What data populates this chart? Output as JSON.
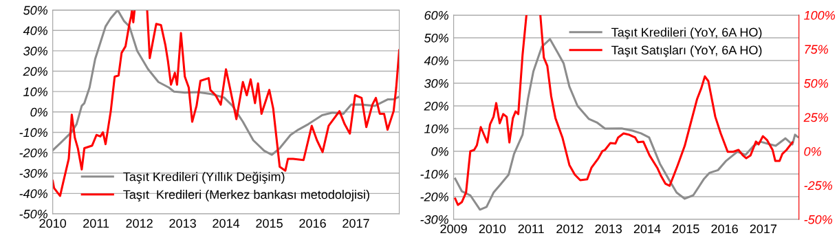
{
  "chart_data": [
    {
      "type": "line",
      "xlim": [
        2010,
        2018
      ],
      "xticks": [
        2010,
        2011,
        2012,
        2013,
        2014,
        2015,
        2016,
        2017
      ],
      "ylim": [
        -50,
        50
      ],
      "yticks": [
        {
          "value": -50,
          "label": "-50%"
        },
        {
          "value": -40,
          "label": "-40%"
        },
        {
          "value": -30,
          "label": "-30%"
        },
        {
          "value": -20,
          "label": "-20%"
        },
        {
          "value": -10,
          "label": "-10%"
        },
        {
          "value": 0,
          "label": "0%"
        },
        {
          "value": 10,
          "label": "10%"
        },
        {
          "value": 20,
          "label": "20%"
        },
        {
          "value": 30,
          "label": "30%"
        },
        {
          "value": 40,
          "label": "40%"
        },
        {
          "value": 50,
          "label": "50%"
        }
      ],
      "grid": "y",
      "legend": "bottom",
      "marker": "none",
      "line_style": "solid",
      "series": [
        {
          "name": "Taşıt Kredileri (Yıllık Değişim)",
          "color": "#8c8c8c",
          "x": [
            2010.0,
            2010.18,
            2010.43,
            2010.55,
            2010.67,
            2010.73,
            2010.85,
            2010.98,
            2011.1,
            2011.22,
            2011.34,
            2011.5,
            2011.65,
            2011.77,
            2011.95,
            2012.2,
            2012.44,
            2012.68,
            2012.8,
            2013.05,
            2013.35,
            2013.66,
            2013.96,
            2014.15,
            2014.39,
            2014.63,
            2014.88,
            2015.06,
            2015.24,
            2015.49,
            2015.67,
            2015.9,
            2016.22,
            2016.46,
            2016.71,
            2016.89,
            2017.13,
            2017.44,
            2017.74,
            2017.87,
            2018.0
          ],
          "values": [
            -18.8,
            -15.2,
            -10,
            -6,
            3,
            4.3,
            12,
            26,
            34,
            42,
            46,
            50,
            44.5,
            42,
            30,
            21,
            14.7,
            12,
            10,
            9.5,
            9.7,
            8.8,
            7,
            3,
            -4.8,
            -13.9,
            -19,
            -21,
            -17.8,
            -11.3,
            -8.7,
            -6,
            -1.6,
            -0.3,
            -0.9,
            3.6,
            3.6,
            3,
            6.2,
            6.2,
            7.5
          ]
        },
        {
          "name": "Taşıt  Kredileri (Merkez bankası metodolojisi)",
          "color": "#ff0000",
          "x": [
            2010.0,
            2010.03,
            2010.17,
            2010.24,
            2010.37,
            2010.44,
            2010.51,
            2010.58,
            2010.67,
            2010.73,
            2010.91,
            2011.01,
            2011.1,
            2011.16,
            2011.22,
            2011.34,
            2011.43,
            2011.52,
            2011.59,
            2011.68,
            2011.77,
            2011.81,
            2011.83,
            2011.86,
            2011.89,
            2012.0,
            2012.18,
            2012.24,
            2012.32,
            2012.39,
            2012.5,
            2012.6,
            2012.66,
            2012.73,
            2012.82,
            2012.87,
            2012.96,
            2013.05,
            2013.14,
            2013.22,
            2013.32,
            2013.41,
            2013.6,
            2013.64,
            2013.76,
            2013.88,
            2014.0,
            2014.09,
            2014.24,
            2014.39,
            2014.48,
            2014.57,
            2014.67,
            2014.74,
            2014.82,
            2015.0,
            2015.09,
            2015.24,
            2015.37,
            2015.43,
            2015.55,
            2015.79,
            2015.98,
            2016.1,
            2016.23,
            2016.37,
            2016.62,
            2016.74,
            2016.86,
            2016.98,
            2017.13,
            2017.24,
            2017.38,
            2017.46,
            2017.55,
            2017.65,
            2017.73,
            2017.87,
            2017.93,
            2018.0
          ],
          "values": [
            -33.8,
            -37.3,
            -41.2,
            -34.7,
            -23,
            -1.3,
            -12.6,
            -17.8,
            -28.2,
            -17.8,
            -16.5,
            -11.3,
            -12,
            -10,
            -15.8,
            0.4,
            17.3,
            17.9,
            29,
            32.2,
            43.2,
            47,
            50,
            44,
            50,
            null,
            50,
            26.4,
            35.5,
            43.2,
            42.6,
            32.9,
            25,
            13.4,
            19.2,
            13.4,
            38.7,
            17.3,
            12,
            -4.8,
            3,
            15.3,
            16.6,
            10.8,
            8.2,
            3.6,
            20.9,
            12,
            -3.5,
            14.7,
            8.2,
            16,
            4.3,
            14,
            -0.9,
            10.8,
            1.7,
            -26.9,
            -28.8,
            -23,
            -23,
            -23.6,
            -6.8,
            -13.9,
            -19.7,
            -6.8,
            0.4,
            -6,
            -10.6,
            8.2,
            6.9,
            -7.4,
            3.6,
            6.9,
            -0.9,
            -0.9,
            -8.7,
            0.4,
            12,
            30.3
          ]
        }
      ]
    },
    {
      "type": "line",
      "xlim": [
        2009,
        2017.92
      ],
      "xticks": [
        2009,
        2010,
        2011,
        2012,
        2013,
        2014,
        2015,
        2016,
        2017
      ],
      "ylim": [
        -30,
        60
      ],
      "yticks": [
        {
          "value": -30,
          "label": "-30%"
        },
        {
          "value": -20,
          "label": "-20%"
        },
        {
          "value": -10,
          "label": "-10%"
        },
        {
          "value": 0,
          "label": "0%"
        },
        {
          "value": 10,
          "label": "10%"
        },
        {
          "value": 20,
          "label": "20%"
        },
        {
          "value": 30,
          "label": "30%"
        },
        {
          "value": 40,
          "label": "40%"
        },
        {
          "value": 50,
          "label": "50%"
        },
        {
          "value": 60,
          "label": "60%"
        }
      ],
      "y2lim": [
        -50,
        100
      ],
      "y2ticks": [
        {
          "value": -50,
          "label": "-50%"
        },
        {
          "value": -25,
          "label": "-25%"
        },
        {
          "value": 0,
          "label": "0%"
        },
        {
          "value": 25,
          "label": "25%"
        },
        {
          "value": 50,
          "label": "50%"
        },
        {
          "value": 75,
          "label": "75%"
        },
        {
          "value": 100,
          "label": "100%"
        }
      ],
      "grid": "y",
      "legend": "top right",
      "marker": "none",
      "line_style": "solid",
      "series": [
        {
          "name": "Taşıt Kredileri (YoY, 6A HO)",
          "color": "#8c8c8c",
          "x": [
            2009.04,
            2009.21,
            2009.43,
            2009.68,
            2009.85,
            2010.03,
            2010.21,
            2010.42,
            2010.56,
            2010.78,
            2010.92,
            2011.06,
            2011.28,
            2011.49,
            2011.7,
            2011.84,
            2011.99,
            2012.2,
            2012.49,
            2012.7,
            2012.91,
            2013.34,
            2013.62,
            2013.84,
            2014.05,
            2014.33,
            2014.55,
            2014.76,
            2014.97,
            2015.19,
            2015.47,
            2015.61,
            2015.83,
            2016.04,
            2016.33,
            2016.54,
            2016.75,
            2016.93,
            2017.18,
            2017.32,
            2017.57,
            2017.75,
            2017.82,
            2017.89
          ],
          "values": [
            -12.1,
            -17.6,
            -19.4,
            -25.7,
            -24.5,
            -18.2,
            -14.6,
            -10.3,
            -1.2,
            7.3,
            23.1,
            35.2,
            46.1,
            49.4,
            43.1,
            38.8,
            28.5,
            20,
            14.3,
            12.7,
            10,
            10.1,
            9.1,
            7.9,
            6.1,
            -5.5,
            -12.1,
            -18.2,
            -20.9,
            -19.4,
            -12.1,
            -9.5,
            -8.3,
            -4.2,
            -0.2,
            -1.6,
            2.4,
            4.2,
            3,
            2.4,
            5.7,
            3,
            7.3,
            6.3
          ]
        },
        {
          "name": "Taşıt Satışları (YoY, 6A HO)",
          "color": "#ff0000",
          "axis": "y2",
          "x": [
            2009.04,
            2009.11,
            2009.21,
            2009.32,
            2009.43,
            2009.53,
            2009.6,
            2009.7,
            2009.8,
            2009.87,
            2009.94,
            2010.03,
            2010.1,
            2010.19,
            2010.28,
            2010.37,
            2010.44,
            2010.53,
            2010.6,
            2010.67,
            2010.78,
            2010.88,
            2011.06,
            2011.24,
            2011.33,
            2011.42,
            2011.52,
            2011.63,
            2011.81,
            2011.99,
            2012.13,
            2012.27,
            2012.45,
            2012.56,
            2012.74,
            2012.84,
            2012.91,
            2013.05,
            2013.18,
            2013.25,
            2013.39,
            2013.54,
            2013.69,
            2013.76,
            2013.9,
            2014.06,
            2014.26,
            2014.36,
            2014.47,
            2014.58,
            2014.68,
            2014.79,
            2014.97,
            2015.12,
            2015.29,
            2015.4,
            2015.49,
            2015.58,
            2015.76,
            2015.9,
            2016.08,
            2016.22,
            2016.36,
            2016.47,
            2016.56,
            2016.67,
            2016.81,
            2016.88,
            2016.99,
            2017.1,
            2017.24,
            2017.31,
            2017.42,
            2017.49,
            2017.6,
            2017.75
          ],
          "values": [
            -34.8,
            -39.4,
            -37.4,
            -30.3,
            0,
            1,
            4.4,
            17.8,
            11.1,
            6.5,
            19.8,
            25.3,
            35.4,
            20.6,
            27.3,
            25.3,
            6.5,
            24.3,
            29.3,
            27.3,
            70.7,
            100,
            null,
            100,
            68.7,
            62.7,
            40.4,
            24.3,
            10.1,
            -10.1,
            -17.2,
            -21.2,
            -20.6,
            -12.1,
            -5.1,
            0,
            1,
            6.1,
            5.7,
            10.1,
            13.1,
            12.1,
            10.1,
            6.7,
            7.1,
            -3,
            -12.1,
            -18.2,
            -23.8,
            -25.3,
            -18.2,
            -10.1,
            4,
            20.2,
            38.4,
            46.5,
            55,
            51.5,
            25.3,
            13.1,
            -0.4,
            -0.4,
            1,
            -3,
            -5.1,
            -3,
            7.1,
            5.1,
            11.1,
            8.1,
            1,
            -7.1,
            -7.1,
            -2,
            1,
            6.5
          ]
        }
      ]
    }
  ]
}
